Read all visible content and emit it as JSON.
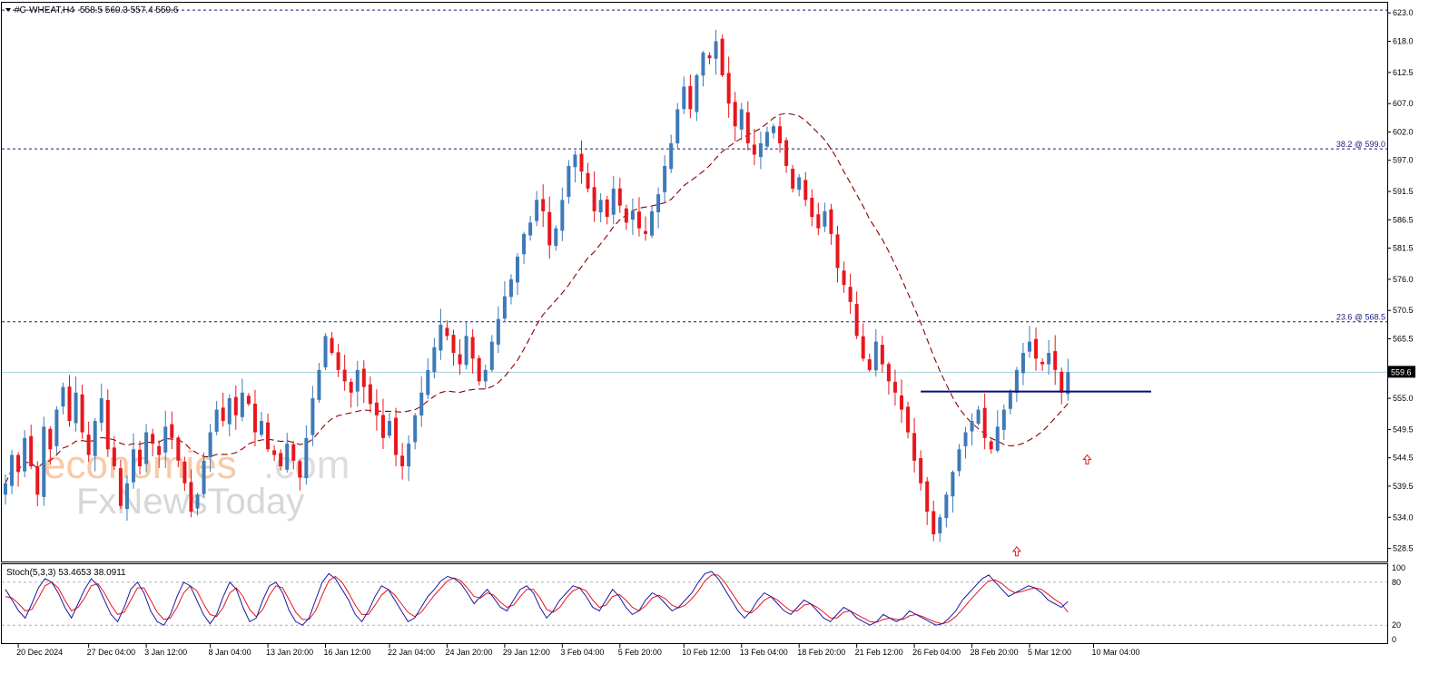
{
  "header": {
    "symbol": "#C-WHEAT,H4",
    "ohlc": "558.5 560.3 557.4 559.6"
  },
  "watermark": {
    "brand_a": "economies",
    "brand_b": ".com",
    "brand_c": "FxNewsToday"
  },
  "colors": {
    "bull": "#3d7ab8",
    "bear": "#e8161d",
    "ma": "#8b0000",
    "fib": "#1a1a7a",
    "support": "#0a0a7a",
    "arrow": "#e8161d",
    "current_price": "#a8cfe0",
    "stoch_main": "#1a1aa0",
    "stoch_signal": "#e8161d"
  },
  "chart_data": [
    {
      "type": "candlestick",
      "title": "#C-WHEAT,H4",
      "ylim": [
        527.0,
        624.0
      ],
      "y_ticks": [
        "623.0",
        "618.0",
        "612.5",
        "607.0",
        "602.0",
        "597.0",
        "591.5",
        "586.5",
        "581.5",
        "576.0",
        "570.5",
        "565.5",
        "560.0",
        "555.0",
        "549.5",
        "544.5",
        "539.5",
        "534.0",
        "528.5"
      ],
      "current_price": 559.6,
      "current_price_label": "559.6",
      "fib_levels": [
        {
          "label": "38.2 @ 599.0",
          "value": 599.0
        },
        {
          "label": "23.6 @ 568.5",
          "value": 568.5
        }
      ],
      "top_level": 623.5,
      "support_level": {
        "value": 556.2,
        "from_index": 143,
        "to_index": 179
      },
      "arrows": [
        {
          "index": 158,
          "price": 528.8
        },
        {
          "index": 169,
          "price": 545.0
        }
      ],
      "x_labels": [
        {
          "label": "20 Dec 2024",
          "index": 2
        },
        {
          "label": "27 Dec 04:00",
          "index": 13
        },
        {
          "label": "3 Jan 12:00",
          "index": 22
        },
        {
          "label": "8 Jan 04:00",
          "index": 32
        },
        {
          "label": "13 Jan 20:00",
          "index": 41
        },
        {
          "label": "16 Jan 12:00",
          "index": 50
        },
        {
          "label": "22 Jan 04:00",
          "index": 60
        },
        {
          "label": "24 Jan 20:00",
          "index": 69
        },
        {
          "label": "29 Jan 12:00",
          "index": 78
        },
        {
          "label": "3 Feb 04:00",
          "index": 87
        },
        {
          "label": "5 Feb 20:00",
          "index": 96
        },
        {
          "label": "10 Feb 12:00",
          "index": 106
        },
        {
          "label": "13 Feb 04:00",
          "index": 115
        },
        {
          "label": "18 Feb 20:00",
          "index": 124
        },
        {
          "label": "21 Feb 12:00",
          "index": 133
        },
        {
          "label": "26 Feb 04:00",
          "index": 142
        },
        {
          "label": "28 Feb 20:00",
          "index": 151
        },
        {
          "label": "5 Mar 12:00",
          "index": 160
        },
        {
          "label": "10 Mar 04:00",
          "index": 170
        }
      ],
      "closes": [
        540,
        545,
        542,
        548,
        543,
        538,
        550,
        546,
        553,
        557,
        551,
        556,
        549,
        545,
        551,
        555,
        546,
        543,
        536,
        540,
        546,
        543,
        549,
        547,
        545,
        550,
        548,
        544,
        540,
        535,
        538,
        544,
        549,
        553,
        551,
        555,
        552,
        556,
        554,
        549,
        551,
        546,
        545,
        543,
        547,
        544,
        541,
        548,
        555,
        560,
        566,
        563,
        560,
        558,
        556,
        560,
        557,
        554,
        552,
        548,
        551,
        545,
        543,
        547,
        552,
        556,
        560,
        564,
        568,
        566,
        563,
        561,
        566,
        562,
        558,
        560,
        565,
        569,
        573,
        576,
        580,
        584,
        586,
        590,
        588,
        582,
        585,
        590,
        596,
        598,
        595,
        592,
        588,
        590,
        587,
        592,
        589,
        586,
        588,
        585,
        584,
        588,
        591,
        596,
        600,
        606,
        610,
        606,
        612,
        616,
        615,
        618,
        612,
        607,
        603,
        606,
        600,
        598,
        600,
        602,
        603,
        600,
        596,
        592,
        594,
        590,
        587,
        585,
        588,
        584,
        578,
        575,
        572,
        566,
        562,
        560,
        565,
        561,
        558,
        556,
        553,
        549,
        544,
        540,
        535,
        531,
        534,
        538,
        542,
        546,
        549,
        551,
        553,
        548,
        546,
        550,
        553,
        556,
        560,
        563,
        565,
        562,
        561,
        563,
        560,
        556,
        559.6
      ],
      "ma": "dashed moving average",
      "indicator": {
        "label": "Stoch(5,3,3) 53.4653 38.0911",
        "levels": [
          80,
          20
        ],
        "y_ticks": [
          "100",
          "80",
          "20",
          "0"
        ],
        "main": [
          70,
          55,
          40,
          30,
          50,
          72,
          85,
          80,
          65,
          45,
          30,
          50,
          70,
          85,
          75,
          55,
          35,
          25,
          45,
          70,
          80,
          65,
          40,
          25,
          20,
          35,
          60,
          80,
          75,
          55,
          35,
          22,
          35,
          60,
          80,
          70,
          45,
          25,
          30,
          55,
          75,
          80,
          65,
          40,
          25,
          20,
          30,
          55,
          80,
          92,
          85,
          70,
          55,
          35,
          25,
          40,
          60,
          75,
          70,
          55,
          40,
          25,
          30,
          45,
          60,
          70,
          82,
          88,
          85,
          78,
          65,
          50,
          60,
          70,
          58,
          45,
          40,
          55,
          70,
          75,
          65,
          45,
          30,
          40,
          55,
          65,
          75,
          72,
          60,
          45,
          40,
          55,
          70,
          60,
          45,
          35,
          40,
          55,
          65,
          60,
          50,
          40,
          45,
          55,
          65,
          80,
          92,
          95,
          85,
          70,
          55,
          40,
          30,
          40,
          55,
          65,
          60,
          50,
          40,
          35,
          45,
          55,
          50,
          40,
          30,
          25,
          35,
          45,
          40,
          30,
          25,
          20,
          25,
          35,
          30,
          25,
          30,
          40,
          35,
          30,
          25,
          20,
          22,
          30,
          40,
          55,
          65,
          75,
          85,
          90,
          80,
          70,
          60,
          65,
          70,
          75,
          72,
          65,
          55,
          50,
          45,
          53
        ],
        "signal": [
          60,
          58,
          50,
          40,
          42,
          58,
          75,
          80,
          72,
          55,
          40,
          45,
          58,
          75,
          78,
          65,
          48,
          35,
          38,
          55,
          72,
          72,
          55,
          38,
          28,
          30,
          45,
          65,
          75,
          68,
          50,
          35,
          32,
          45,
          65,
          72,
          60,
          42,
          32,
          42,
          62,
          75,
          72,
          55,
          38,
          28,
          28,
          40,
          62,
          82,
          88,
          80,
          65,
          48,
          35,
          35,
          48,
          62,
          70,
          62,
          50,
          38,
          32,
          38,
          50,
          62,
          72,
          82,
          86,
          82,
          72,
          60,
          58,
          65,
          62,
          52,
          45,
          48,
          60,
          70,
          70,
          58,
          42,
          38,
          45,
          58,
          68,
          72,
          68,
          55,
          45,
          48,
          60,
          63,
          55,
          45,
          40,
          47,
          58,
          62,
          57,
          48,
          44,
          48,
          57,
          68,
          82,
          90,
          90,
          80,
          66,
          52,
          40,
          37,
          45,
          55,
          60,
          55,
          47,
          40,
          40,
          48,
          50,
          45,
          38,
          30,
          30,
          38,
          40,
          35,
          30,
          25,
          24,
          28,
          30,
          28,
          28,
          33,
          35,
          32,
          28,
          24,
          22,
          25,
          32,
          42,
          53,
          63,
          73,
          82,
          83,
          78,
          70,
          65,
          67,
          70,
          72,
          70,
          63,
          56,
          50,
          38
        ]
      }
    }
  ]
}
